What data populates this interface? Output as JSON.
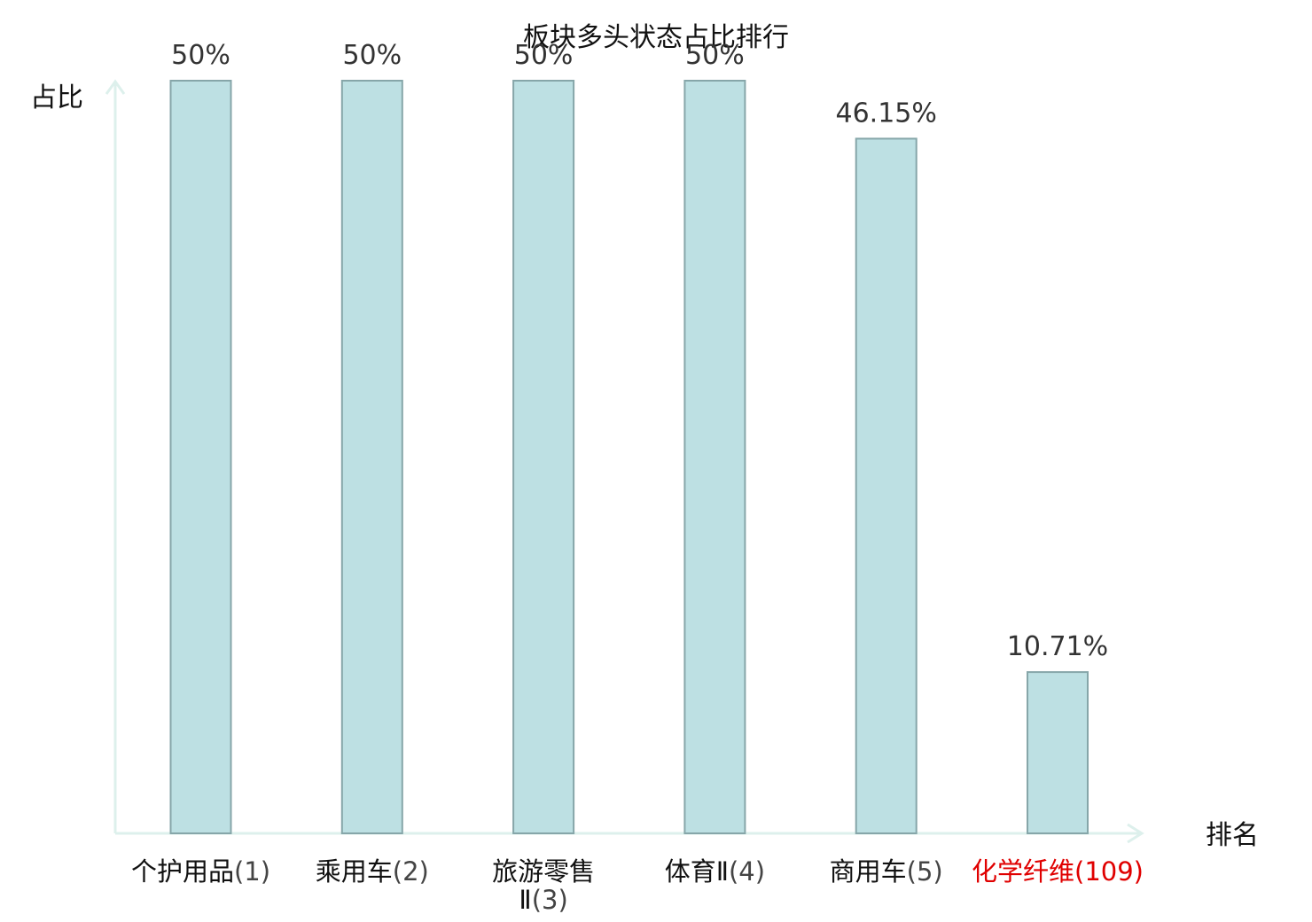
{
  "chart_data": {
    "type": "bar",
    "title": "板块多头状态占比排行",
    "ylabel": "占比",
    "xlabel": "排名",
    "ylim": [
      0,
      50
    ],
    "categories": [
      {
        "name": "个护用品",
        "name_line2": "",
        "rank": "(1)",
        "highlight": false
      },
      {
        "name": "乘用车",
        "name_line2": "",
        "rank": "(2)",
        "highlight": false
      },
      {
        "name": "旅游零售",
        "name_line2": "Ⅱ",
        "rank": "(3)",
        "highlight": false
      },
      {
        "name": "体育Ⅱ",
        "name_line2": "",
        "rank": "(4)",
        "highlight": false
      },
      {
        "name": "商用车",
        "name_line2": "",
        "rank": "(5)",
        "highlight": false
      },
      {
        "name": "化学纤维",
        "name_line2": "",
        "rank": "(109)",
        "highlight": true
      }
    ],
    "values": [
      50,
      50,
      50,
      50,
      46.15,
      10.71
    ],
    "value_labels": [
      "50%",
      "50%",
      "50%",
      "50%",
      "46.15%",
      "10.71%"
    ],
    "grid": false,
    "legend": "none"
  },
  "colors": {
    "bar_fill": "#bde0e3",
    "bar_stroke": "#86a6a9",
    "axis": "#ddf0ec",
    "label_normal_name": "#111111",
    "label_normal_rank": "#444444",
    "label_highlight": "#e00000"
  }
}
